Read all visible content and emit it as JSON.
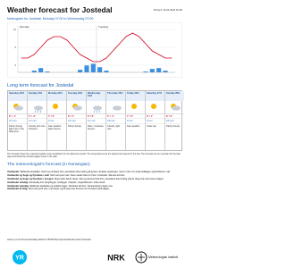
{
  "header": {
    "title": "Weather forecast for Jostedal",
    "printed": "Printed: 19.04.2024 10:00"
  },
  "meteogram": {
    "title": "Meteogram for Jostedal, Monday 07:00 to Wednesday 07:00",
    "days": [
      "Monday",
      "Tuesday"
    ],
    "temperature": [
      2,
      2,
      3,
      5,
      7,
      8,
      8,
      7,
      5,
      3,
      2,
      1,
      1,
      2,
      4,
      6,
      8,
      9,
      8,
      6,
      4,
      3,
      2,
      2
    ],
    "precipitation": [
      0,
      0,
      0.2,
      0.5,
      0.1,
      0,
      0,
      0,
      0,
      0.3,
      0.8,
      1,
      0.6,
      0.2,
      0,
      0,
      0,
      0,
      0,
      0.1,
      0.4,
      0.5,
      0.2,
      0
    ],
    "ylim": [
      -2,
      10
    ],
    "yticks": [
      0,
      5,
      10
    ],
    "y2lim": [
      0,
      5
    ],
    "temperature_color": "#d0021b",
    "precipitation_color": "#3b8fe0"
  },
  "long_term": {
    "title": "Long term forecast for Jostedal",
    "columns": [
      {
        "day": "Saturday 20/4",
        "temp": "6° / -1°",
        "precip": "0.4 mm",
        "text": "Partly cloudy, light rain in the afternoon."
      },
      {
        "day": "Sunday 21/4",
        "temp": "5° / -2°",
        "precip": "1.2 mm",
        "text": "Cloudy with rain showers."
      },
      {
        "day": "Monday 22/4",
        "temp": "7° / 0°",
        "precip": "0 mm",
        "text": "Fair weather, light breeze."
      },
      {
        "day": "Tuesday 23/4",
        "temp": "8° / 1°",
        "precip": "0.2 mm",
        "text": "Partly cloudy."
      },
      {
        "day": "Wednesday 24/4",
        "temp": "6° / 0°",
        "precip": "2.1 mm",
        "text": "Rain, moderate breeze."
      },
      {
        "day": "Thursday 25/4",
        "temp": "5° / -1°",
        "precip": "0.8 mm",
        "text": "Cloudy, light rain."
      },
      {
        "day": "Friday 26/4",
        "temp": "7° / 0°",
        "precip": "0 mm",
        "text": "Fair weather."
      },
      {
        "day": "Saturday 27/4",
        "temp": "9° / 1°",
        "precip": "0 mm",
        "text": "Clear sky."
      },
      {
        "day": "Sunday 28/4",
        "temp": "8° / 2°",
        "precip": "0.5 mm",
        "text": "Partly cloudy."
      }
    ]
  },
  "note": "The forecast shows the expected weather and precipitation for the afternoon period. The temperatures are the highest and lowest for the day. The forecast can be uncertain for the later days and should be checked again closer to the date.",
  "forecast": {
    "title": "The meteorologist's forecast (in Norwegian)",
    "paragraphs": [
      {
        "region": "Vestlandet:",
        "text": "Skiftende skydekke. Nord og nordvest bris, periodevis liten kuling på kysten. Enkelte regnbyger, mest i nord. Om ettermiddagen oppholdsvær i sør."
      },
      {
        "region": "Vestlandet og Sogn og Fjordane i natt:",
        "text": "Stort sett pent vær. Flere steder fare for frost i innlandet. Sørvest lett bris."
      },
      {
        "region": "Vestlandet og Sogn og Fjordane i morgen:",
        "text": "Skyet eller delvis skyet. Sør og sørvest frisk bris, periodevis liten kuling ytterst. Regn fra vest utover dagen."
      },
      {
        "region": "Vestlandet søndag:",
        "text": "Sørvestlig bris. Regnbyger, snøbyger i høyden. Oppholdsvær i indre strøk."
      },
      {
        "region": "Vestlandet mandag:",
        "text": "Skiftende skydekke og enkelte byger. Nordvest lett bris. Temperaturen stiger noe."
      },
      {
        "region": "Vestlandet tirsdag:",
        "text": "Stort sett pent vær, men skyer og litt regn kan komme inn fra havet utpå dagen."
      }
    ]
  },
  "footer": {
    "url": "www.yr.no/en/forecast/daily-table/1-15625/Norway/Vestland/Luster/Jostedal",
    "yr": "YR",
    "nrk": "NRK",
    "met": "Meteorologisk institutt"
  }
}
